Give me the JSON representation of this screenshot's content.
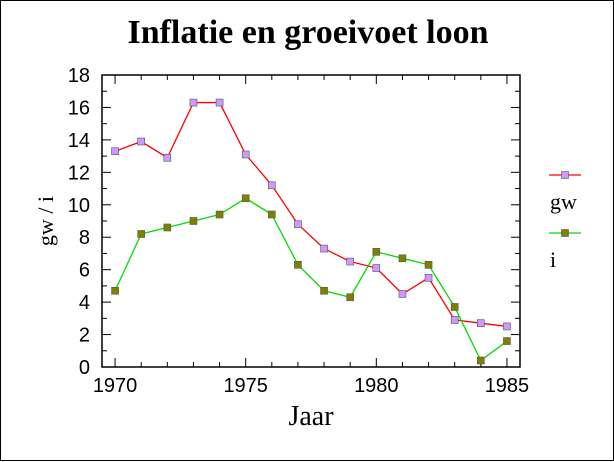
{
  "chart_data": {
    "type": "line",
    "title": "Inflatie en groeivoet loon",
    "xlabel": "Jaar",
    "ylabel": "gw / i",
    "xlim": [
      1969.5,
      1985.5
    ],
    "ylim": [
      0,
      18
    ],
    "x_ticks": [
      1970,
      1975,
      1980,
      1985
    ],
    "y_ticks": [
      0,
      2,
      4,
      6,
      8,
      10,
      12,
      14,
      16,
      18
    ],
    "legend_position": "right",
    "grid": false,
    "x": [
      1970,
      1971,
      1972,
      1973,
      1974,
      1975,
      1976,
      1977,
      1978,
      1979,
      1980,
      1981,
      1982,
      1983,
      1984,
      1985
    ],
    "series": [
      {
        "name": "gw",
        "line_color": "#ff0000",
        "marker_color": "#cc99ff",
        "values": [
          13.3,
          13.9,
          12.9,
          16.3,
          16.3,
          13.1,
          11.2,
          8.8,
          7.3,
          6.5,
          6.1,
          4.5,
          5.5,
          2.9,
          2.7,
          2.5
        ]
      },
      {
        "name": "i",
        "line_color": "#00dd00",
        "marker_color": "#808000",
        "values": [
          4.7,
          8.2,
          8.6,
          9.0,
          9.4,
          10.4,
          9.4,
          6.3,
          4.7,
          4.3,
          7.1,
          6.7,
          6.3,
          3.7,
          0.4,
          1.6
        ]
      }
    ]
  }
}
